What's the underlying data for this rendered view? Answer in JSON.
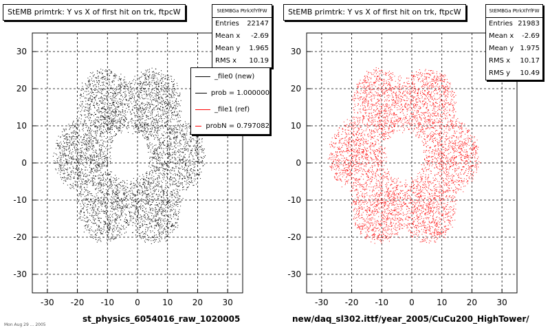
{
  "chart_data": [
    {
      "type": "scatter",
      "title": "StEMB primtrk: Y vs X of first hit on trk, ftpcW",
      "xlim": [
        -35,
        35
      ],
      "ylim": [
        -35,
        35
      ],
      "xticks": [
        -30,
        -20,
        -10,
        0,
        10,
        20,
        30
      ],
      "yticks": [
        -30,
        -20,
        -10,
        0,
        10,
        20,
        30
      ],
      "grid": true,
      "point_color": "#000000",
      "inner_hole_radius": 6.5,
      "approx_outer_extent": 25,
      "stats": {
        "header": "StEMBGa PtrkXfYfFW",
        "rows": [
          {
            "label": "Entries",
            "value": "22147"
          },
          {
            "label": "Mean x",
            "value": "-2.69"
          },
          {
            "label": "Mean y",
            "value": "1.965"
          },
          {
            "label": "RMS x",
            "value": "10.19"
          }
        ]
      },
      "legend": {
        "placement": "top-right",
        "entries": [
          {
            "text": "_file0 (new)",
            "color": "#000000"
          },
          {
            "text": "prob = 1.000000",
            "color": "#000000"
          },
          {
            "text": "_file1 (ref)",
            "color": "#ff0000"
          },
          {
            "text": "probN = 0.797082",
            "color": "#ff0000"
          }
        ]
      },
      "xlabel": "st_physics_6054016_raw_1020005"
    },
    {
      "type": "scatter",
      "title": "StEMB primtrk: Y vs X of first hit on trk, ftpcW",
      "xlim": [
        -35,
        35
      ],
      "ylim": [
        -35,
        35
      ],
      "xticks": [
        -30,
        -20,
        -10,
        0,
        10,
        20,
        30
      ],
      "yticks": [
        -30,
        -20,
        -10,
        0,
        10,
        20,
        30
      ],
      "grid": true,
      "point_color": "#ff0000",
      "inner_hole_radius": 6.5,
      "approx_outer_extent": 25,
      "stats": {
        "header": "StEMBGa PtrkXfYfFW",
        "rows": [
          {
            "label": "Entries",
            "value": "21983"
          },
          {
            "label": "Mean x",
            "value": "-2.69"
          },
          {
            "label": "Mean y",
            "value": "1.975"
          },
          {
            "label": "RMS x",
            "value": "10.17"
          },
          {
            "label": "RMS y",
            "value": "10.49"
          }
        ]
      },
      "xlabel": "new/daq_sl302.ittf/year_2005/CuCu200_HighTower/"
    }
  ],
  "footer_note": "Mon Aug 29 ... 2005"
}
